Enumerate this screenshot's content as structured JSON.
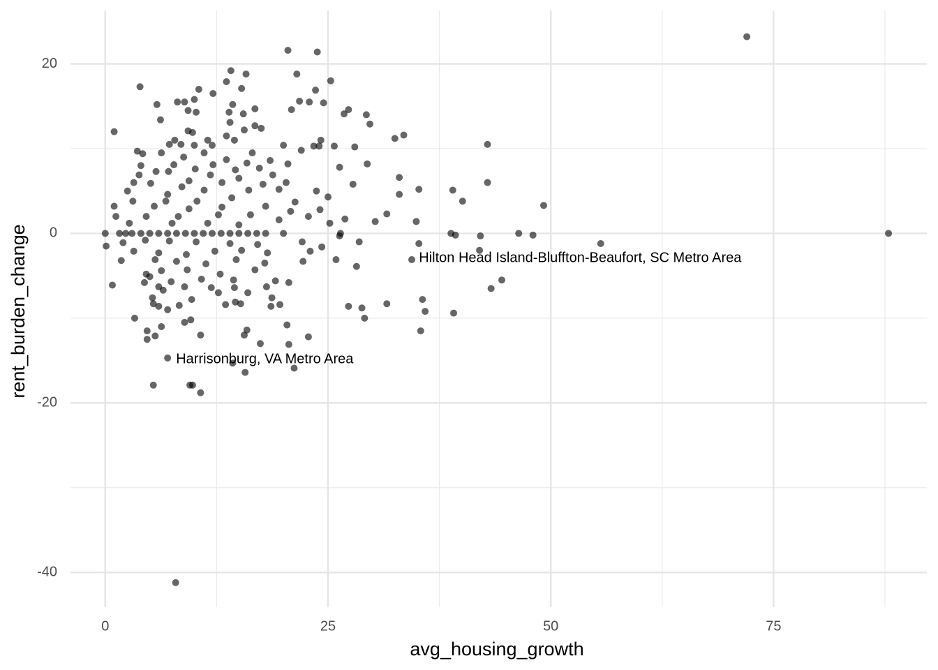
{
  "chart_data": {
    "type": "scatter",
    "x_label": "avg_housing_growth",
    "y_label": "rent_burden_change",
    "xlim": [
      -3.9,
      92.2
    ],
    "ylim": [
      -44.1,
      26.3
    ],
    "xticks": [
      0,
      25,
      50,
      75
    ],
    "yticks": [
      -40,
      -20,
      0,
      20
    ],
    "x_minor_ticks": [
      12.5,
      37.5,
      62.5,
      87.5
    ],
    "y_minor_ticks": [
      -30,
      -10,
      10
    ],
    "grid": true,
    "color": "#000000",
    "opacity": 0.6,
    "annotations": [
      {
        "text": "Hilton Head Island-Bluffton-Beaufort, SC Metro Area",
        "x": 53.3,
        "y": -2.96
      },
      {
        "text": "Harrisonburg, VA Metro Area",
        "x": 17.9,
        "y": -14.9
      }
    ],
    "x": [
      72.0,
      87.9,
      7.9,
      20.5,
      23.8,
      14.1,
      15.8,
      21.5,
      13.6,
      25.3,
      3.9,
      10.5,
      15.3,
      23.6,
      12.1,
      8.1,
      8.9,
      10.0,
      5.8,
      14.3,
      21.8,
      22.9,
      24.5,
      20.9,
      9.3,
      10.2,
      13.9,
      15.5,
      16.8,
      27.3,
      26.8,
      29.3,
      6.2,
      14.0,
      29.7,
      16.8,
      17.5,
      1.0,
      9.3,
      9.8,
      15.6,
      13.6,
      33.5,
      32.5,
      7.8,
      11.5,
      14.5,
      24.2,
      7.2,
      8.5,
      10.0,
      12.0,
      20.0,
      23.4,
      24.0,
      25.7,
      28.0,
      42.9,
      3.6,
      4.2,
      6.3,
      16.5,
      11.1,
      22.0,
      8.8,
      13.6,
      18.5,
      20.5,
      7.7,
      12.1,
      15.9,
      29.4,
      4.0,
      5.7,
      7.1,
      10.1,
      14.6,
      17.3,
      26.3,
      3.8,
      9.4,
      11.8,
      15.0,
      18.8,
      33.0,
      42.9,
      3.2,
      5.1,
      8.6,
      13.1,
      17.7,
      20.3,
      27.8,
      2.5,
      7.0,
      11.1,
      16.1,
      19.5,
      23.7,
      35.2,
      39.0,
      33.0,
      3.1,
      6.8,
      10.3,
      14.2,
      21.3,
      25.0,
      40.1,
      49.2,
      1.0,
      5.5,
      9.4,
      13.1,
      18.0,
      20.8,
      24.1,
      31.6,
      1.2,
      4.6,
      8.2,
      12.7,
      16.3,
      22.8,
      26.9,
      30.3,
      34.9,
      2.7,
      7.5,
      11.5,
      15.0,
      19.5,
      25.2,
      0.0,
      1.6,
      2.3,
      3.0,
      4.0,
      5.0,
      6.0,
      7.0,
      8.0,
      9.0,
      10.0,
      11.0,
      12.0,
      13.0,
      14.0,
      15.0,
      16.0,
      17.0,
      18.0,
      20.0,
      26.4,
      38.8,
      39.3,
      42.1,
      46.4,
      48.0,
      55.6,
      26.3,
      0.1,
      2.0,
      4.5,
      7.2,
      10.2,
      14.0,
      17.1,
      22.1,
      24.3,
      28.5,
      35.2,
      42.0,
      3.2,
      6.0,
      9.1,
      12.3,
      15.3,
      18.2,
      23.0,
      1.8,
      5.6,
      8.0,
      11.3,
      14.7,
      17.9,
      22.2,
      25.9,
      34.4,
      4.6,
      6.3,
      9.2,
      12.9,
      16.8,
      28.2,
      5.0,
      7.4,
      10.8,
      14.4,
      19.1,
      4.4,
      0.8,
      6.0,
      8.9,
      11.9,
      14.5,
      18.1,
      20.6,
      44.5,
      43.3,
      6.5,
      12.7,
      16.0,
      18.7,
      5.3,
      9.7,
      14.6,
      15.2,
      5.4,
      6.0,
      8.3,
      13.5,
      18.6,
      19.6,
      27.3,
      28.8,
      31.6,
      35.6,
      35.9,
      39.1,
      7.0,
      3.3,
      29.1,
      8.9,
      9.6,
      20.4,
      4.7,
      6.3,
      15.9,
      35.4,
      4.7,
      5.6,
      10.7,
      15.6,
      17.4,
      20.6,
      22.8,
      7.0,
      14.3,
      21.2,
      15.7,
      5.4,
      9.5,
      9.8,
      10.7
    ],
    "values": [
      23.2,
      0,
      -41.2,
      21.6,
      21.4,
      19.2,
      18.8,
      18.8,
      17.9,
      18.0,
      17.3,
      17.0,
      17.1,
      16.9,
      16.5,
      15.5,
      15.5,
      15.8,
      15.2,
      15.2,
      15.6,
      15.5,
      15.4,
      14.6,
      14.5,
      14.3,
      14.3,
      14.1,
      14.7,
      14.6,
      14.1,
      14.0,
      13.4,
      13.1,
      12.9,
      12.7,
      12.4,
      12.0,
      12.1,
      11.9,
      12.2,
      11.5,
      11.6,
      11.2,
      11.0,
      11.0,
      11.0,
      11.0,
      10.5,
      10.5,
      10.4,
      10.4,
      10.4,
      10.3,
      10.3,
      10.3,
      10.2,
      10.5,
      9.7,
      9.4,
      9.5,
      9.5,
      9.5,
      9.8,
      9.0,
      8.7,
      8.6,
      8.2,
      8.1,
      8.1,
      8.3,
      8.2,
      8.0,
      7.3,
      7.3,
      7.6,
      7.5,
      7.7,
      7.8,
      6.9,
      6.2,
      6.9,
      6.5,
      6.9,
      6.6,
      6.0,
      6.0,
      5.9,
      5.5,
      6.0,
      5.8,
      6.0,
      5.8,
      5.0,
      4.6,
      5.1,
      5.1,
      5.2,
      5.0,
      5.2,
      5.1,
      4.6,
      3.8,
      3.8,
      3.8,
      4.2,
      3.7,
      4.3,
      3.8,
      3.3,
      3.2,
      3.2,
      2.9,
      3.1,
      3.2,
      2.6,
      2.8,
      2.3,
      2.0,
      2.0,
      2.0,
      2.2,
      2.2,
      2.0,
      1.7,
      1.4,
      1.4,
      1.2,
      1.2,
      1.2,
      1.0,
      1.6,
      1.2,
      0,
      0,
      0,
      0,
      0,
      0,
      0,
      0,
      0,
      0,
      0,
      0,
      0,
      0,
      0,
      0,
      0,
      0,
      0,
      0,
      0,
      0,
      -0.2,
      -0.3,
      0,
      -0.2,
      -1.2,
      -0.3,
      -1.5,
      -1.1,
      -0.8,
      -0.9,
      -1.0,
      -1.2,
      -1.3,
      -1.0,
      -1.6,
      -1.0,
      -1.2,
      -2.0,
      -2.1,
      -2.3,
      -2.5,
      -2.1,
      -2.0,
      -2.3,
      -2.1,
      -3.2,
      -3.1,
      -3.3,
      -3.6,
      -3.1,
      -3.5,
      -3.3,
      -3.1,
      -3.1,
      -4.8,
      -4.4,
      -4.3,
      -4.8,
      -4.3,
      -3.9,
      -5.1,
      -5.7,
      -5.4,
      -5.5,
      -5.6,
      -5.8,
      -6.1,
      -6.3,
      -6.3,
      -6.4,
      -6.4,
      -6.3,
      -5.8,
      -5.5,
      -6.5,
      -6.7,
      -7.0,
      -7.0,
      -7.6,
      -7.6,
      -7.8,
      -8.1,
      -8.3,
      -8.3,
      -8.6,
      -8.5,
      -8.4,
      -8.6,
      -8.4,
      -8.6,
      -8.8,
      -8.3,
      -7.8,
      -9.2,
      -9.4,
      -9.0,
      -10.0,
      -10.0,
      -10.5,
      -10.2,
      -10.8,
      -11.5,
      -11.0,
      -11.4,
      -11.5,
      -12.5,
      -12.1,
      -12.0,
      -12.0,
      -13.0,
      -13.1,
      -12.2,
      -14.7,
      -15.3,
      -15.9,
      -16.4,
      -17.9,
      -17.9,
      -17.9,
      -18.8
    ]
  }
}
